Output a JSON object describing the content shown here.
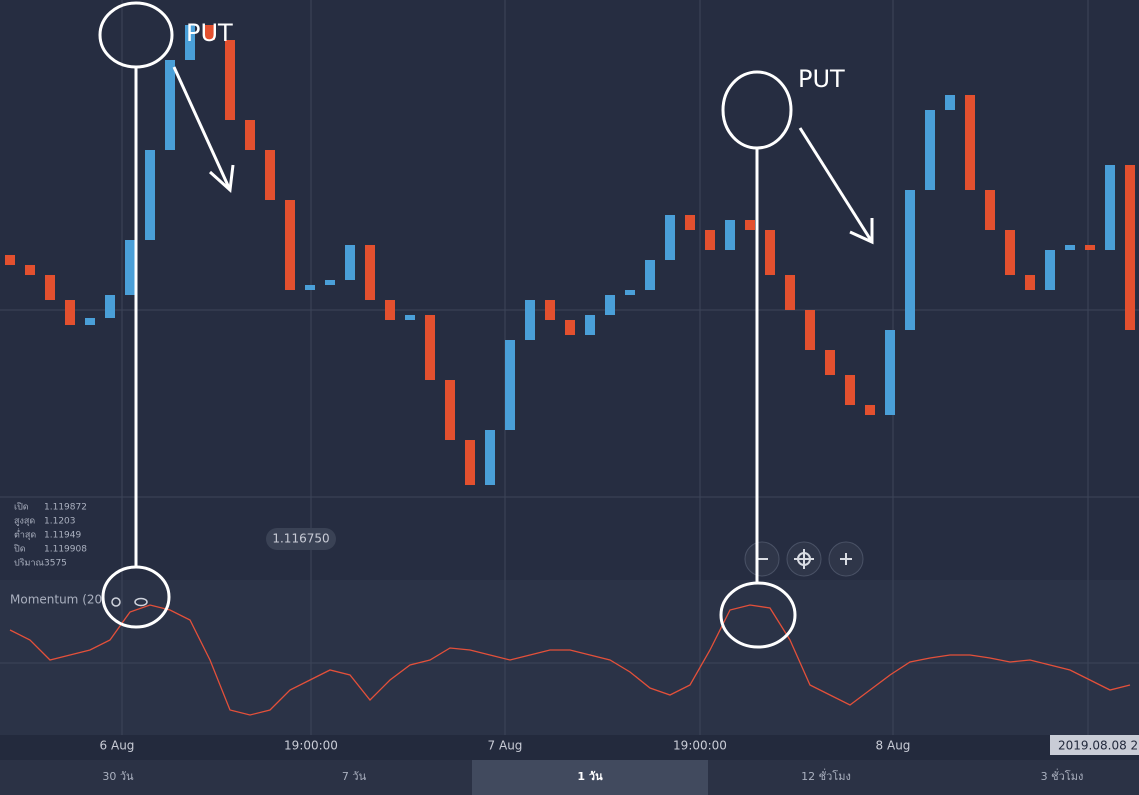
{
  "chart_data": {
    "type": "candlestick",
    "ylim": [
      1.116,
      1.1218
    ],
    "open": [
      1.11925,
      1.11915,
      1.11905,
      1.1188,
      1.11855,
      1.11862,
      1.11885,
      1.1194,
      1.1203,
      1.1212,
      1.12155,
      1.1214,
      1.1206,
      1.1203,
      1.1198,
      1.1189,
      1.11895,
      1.119,
      1.11935,
      1.1188,
      1.1186,
      1.11865,
      1.118,
      1.1174,
      1.11695,
      1.1175,
      1.1184,
      1.1188,
      1.1186,
      1.11845,
      1.11865,
      1.11885,
      1.1189,
      1.1192,
      1.11965,
      1.1195,
      1.1193,
      1.1196,
      1.1195,
      1.11905,
      1.1187,
      1.1183,
      1.11805,
      1.11775,
      1.11765,
      1.1185,
      1.1199,
      1.1207,
      1.12085,
      1.1199,
      1.1195,
      1.11905,
      1.1189,
      1.1193,
      1.11935,
      1.1193,
      1.12015
    ],
    "close": [
      1.11915,
      1.11905,
      1.1188,
      1.11855,
      1.11862,
      1.11885,
      1.1194,
      1.1203,
      1.1212,
      1.12155,
      1.1214,
      1.1206,
      1.1203,
      1.1198,
      1.1189,
      1.11895,
      1.119,
      1.11935,
      1.1188,
      1.1186,
      1.11865,
      1.118,
      1.1174,
      1.11695,
      1.1175,
      1.1184,
      1.1188,
      1.1186,
      1.11845,
      1.11865,
      1.11885,
      1.1189,
      1.1192,
      1.11965,
      1.1195,
      1.1193,
      1.1196,
      1.1195,
      1.11905,
      1.1187,
      1.1183,
      1.11805,
      1.11775,
      1.11765,
      1.1185,
      1.1199,
      1.1207,
      1.12085,
      1.1199,
      1.1195,
      1.11905,
      1.1189,
      1.1193,
      1.11935,
      1.1193,
      1.12015,
      1.1185
    ],
    "up_color": "#4a9fd8",
    "down_color": "#e3502f"
  },
  "indicator": {
    "name": "Momentum (20",
    "color": "#e3503a",
    "ylim": [
      0,
      135
    ],
    "values": [
      105,
      95,
      75,
      80,
      85,
      95,
      123,
      130,
      125,
      115,
      75,
      25,
      20,
      25,
      45,
      55,
      65,
      60,
      35,
      55,
      70,
      75,
      87,
      85,
      80,
      75,
      80,
      85,
      85,
      80,
      75,
      63,
      47,
      40,
      50,
      85,
      125,
      130,
      127,
      95,
      50,
      40,
      30,
      45,
      60,
      73,
      77,
      80,
      80,
      77,
      73,
      75,
      70,
      65,
      55,
      45,
      50
    ]
  },
  "info": [
    {
      "label": "เปิด",
      "value": "1.119872"
    },
    {
      "label": "สูงสุด",
      "value": "1.1203"
    },
    {
      "label": "ต่ำสุด",
      "value": "1.11949"
    },
    {
      "label": "ปิด",
      "value": "1.119908"
    },
    {
      "label": "ปริมาณ",
      "value": "3575"
    }
  ],
  "price_label": "1.116750",
  "x_axis_labels": [
    "6 Aug",
    "19:00:00",
    "7 Aug",
    "19:00:00",
    "8 Aug"
  ],
  "date_box": "2019.08.08 2",
  "tabs": [
    "30 วัน",
    "7 วัน",
    "1 วัน",
    "12 ชั่วโมง",
    "3 ชั่วโมง"
  ],
  "annotations": [
    "PUT",
    "PUT"
  ]
}
